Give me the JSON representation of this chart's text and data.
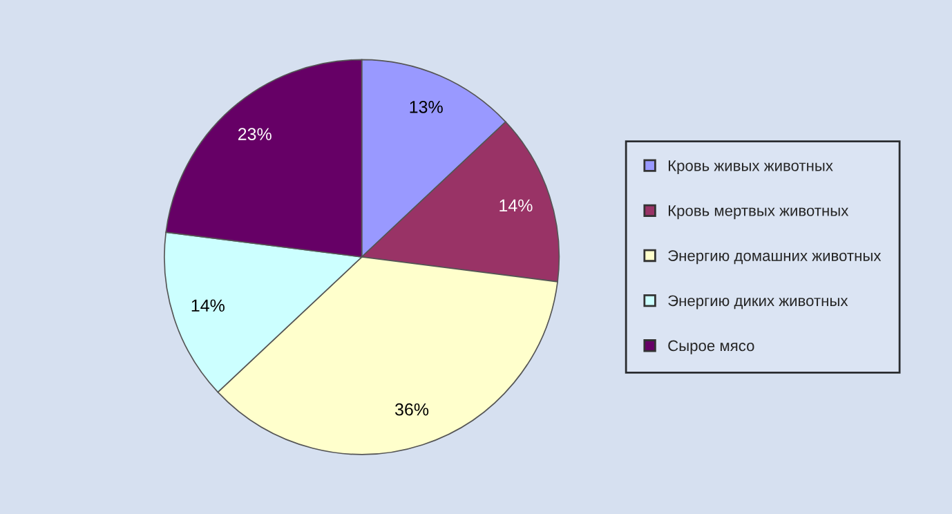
{
  "chart_data": {
    "type": "pie",
    "categories": [
      "Кровь живых животных",
      "Кровь мертвых животных",
      "Энергию домашних животных",
      "Энергию диких животных",
      "Сырое мясо"
    ],
    "values": [
      13,
      14,
      36,
      14,
      23
    ],
    "value_labels": [
      "13%",
      "14%",
      "36%",
      "14%",
      "23%"
    ],
    "colors": [
      "#9999ff",
      "#993366",
      "#ffffcc",
      "#ccffff",
      "#660066"
    ],
    "legend": "right"
  }
}
